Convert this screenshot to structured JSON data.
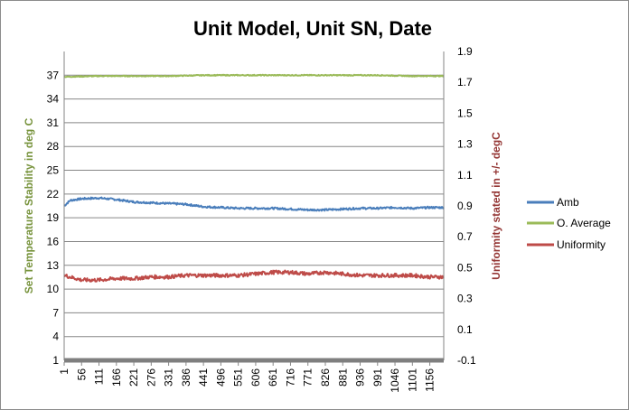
{
  "colors": {
    "amb": "#4a7ebb",
    "average": "#9bbb59",
    "uniformity": "#be4b48",
    "grid": "#868686",
    "left_axis_title": "#77933c",
    "right_axis_title": "#943634",
    "category_axis": "#7f7f7f"
  },
  "chart_data": {
    "type": "line",
    "title": "Unit Model, Unit SN, Date",
    "ylabel": "Set Temperature Stability in deg C",
    "y2label": "Uniformity stated in +/- degC",
    "ylim": [
      1,
      40
    ],
    "y_ticks": [
      "1",
      "4",
      "7",
      "10",
      "13",
      "16",
      "19",
      "22",
      "25",
      "28",
      "31",
      "34",
      "37"
    ],
    "y2lim": [
      -0.1,
      1.9
    ],
    "y2_ticks": [
      "-0.1",
      "0.1",
      "0.3",
      "0.5",
      "0.7",
      "0.9",
      "1.1",
      "1.3",
      "1.5",
      "1.7",
      "1.9"
    ],
    "x_range": [
      1,
      1200
    ],
    "x_ticks": [
      "1",
      "56",
      "111",
      "166",
      "221",
      "276",
      "331",
      "386",
      "441",
      "496",
      "551",
      "606",
      "661",
      "716",
      "771",
      "826",
      "881",
      "936",
      "991",
      "1046",
      "1101",
      "1156"
    ],
    "grid": "horizontal",
    "legend_position": "right",
    "series": [
      {
        "name": "Amb",
        "axis": "primary",
        "x": [
          1,
          20,
          56,
          111,
          166,
          221,
          276,
          331,
          386,
          441,
          496,
          551,
          606,
          661,
          716,
          771,
          826,
          881,
          936,
          991,
          1046,
          1101,
          1156,
          1200
        ],
        "values": [
          20.5,
          21.2,
          21.4,
          21.5,
          21.3,
          21.0,
          20.9,
          20.8,
          20.7,
          20.4,
          20.3,
          20.2,
          20.2,
          20.2,
          20.1,
          20.0,
          20.0,
          20.1,
          20.2,
          20.2,
          20.3,
          20.2,
          20.3,
          20.3
        ]
      },
      {
        "name": "O. Average",
        "axis": "primary",
        "x": [
          1,
          111,
          221,
          331,
          441,
          551,
          661,
          771,
          881,
          991,
          1101,
          1200
        ],
        "values": [
          36.8,
          36.9,
          36.9,
          36.9,
          37.0,
          37.0,
          37.0,
          37.0,
          37.0,
          37.0,
          36.9,
          36.9
        ]
      },
      {
        "name": "Uniformity",
        "axis": "secondary",
        "x": [
          1,
          56,
          111,
          166,
          221,
          276,
          331,
          386,
          441,
          496,
          551,
          606,
          661,
          716,
          771,
          826,
          881,
          936,
          991,
          1046,
          1101,
          1156,
          1200
        ],
        "values": [
          0.45,
          0.42,
          0.42,
          0.43,
          0.43,
          0.44,
          0.44,
          0.45,
          0.45,
          0.45,
          0.45,
          0.46,
          0.47,
          0.47,
          0.46,
          0.47,
          0.46,
          0.45,
          0.45,
          0.45,
          0.45,
          0.44,
          0.44
        ]
      }
    ]
  }
}
